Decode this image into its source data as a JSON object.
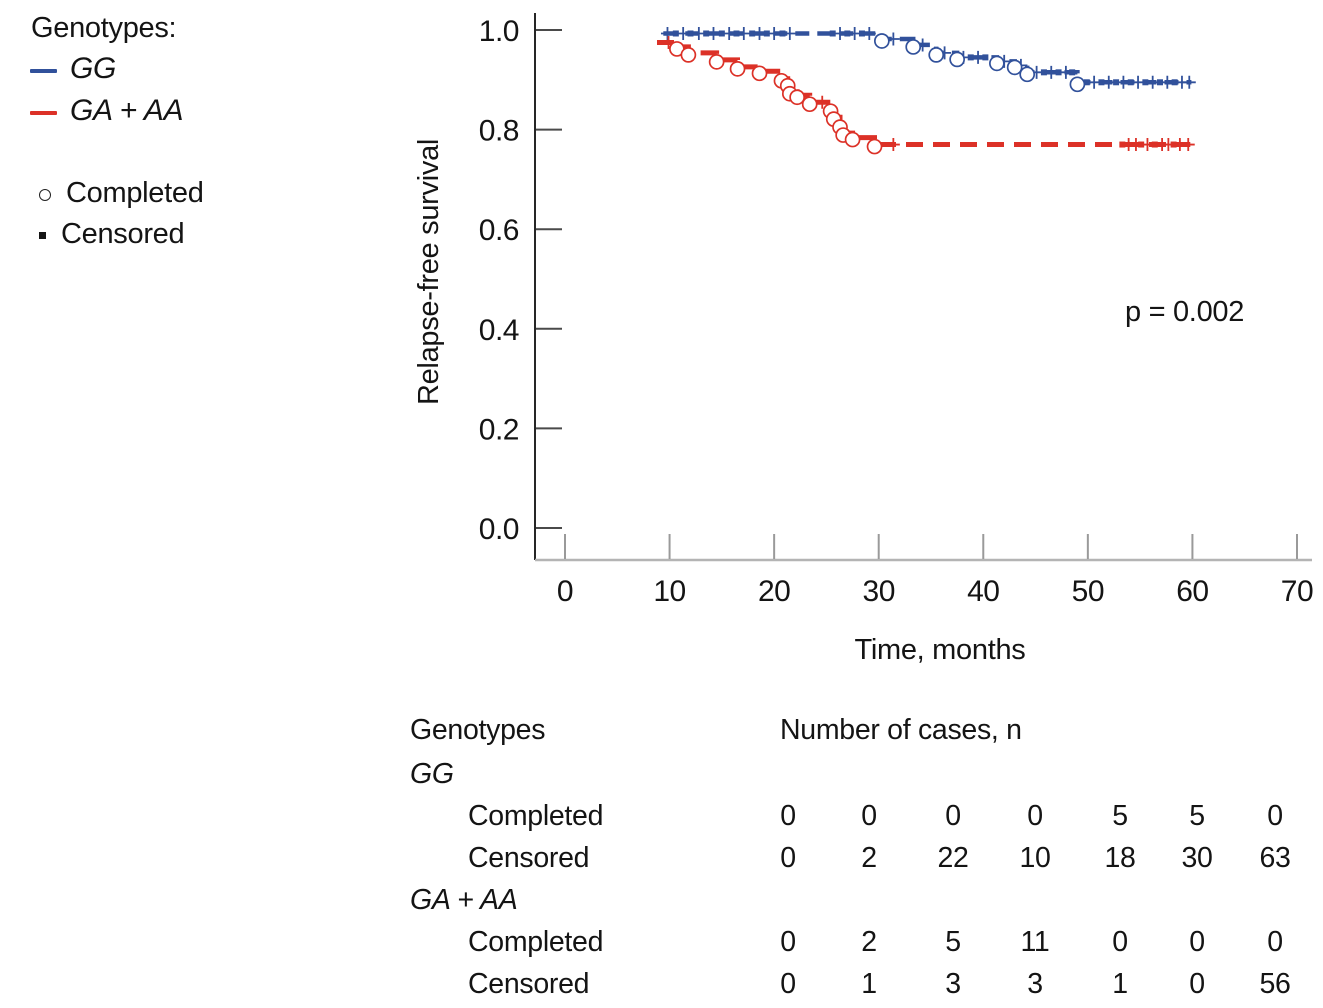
{
  "legend": {
    "title": "Genotypes:",
    "series": [
      {
        "label": "GG",
        "color": "#31519b"
      },
      {
        "label": "GA + AA",
        "color": "#dc3127"
      }
    ],
    "markers": [
      {
        "label": "Completed",
        "symbol": "open-circle"
      },
      {
        "label": "Censored",
        "symbol": "filled-square"
      }
    ]
  },
  "chart_data": {
    "type": "line",
    "subtype": "kaplan-meier-step-curves",
    "title": "",
    "xlabel": "Time, months",
    "ylabel": "Relapse-free survival",
    "p_label": "p = 0.002",
    "xlim": [
      0,
      70
    ],
    "ylim": [
      0.0,
      1.0
    ],
    "x_ticks": [
      0,
      10,
      20,
      30,
      40,
      50,
      60,
      70
    ],
    "y_ticks": [
      {
        "label": "1.0",
        "value": 1.0
      },
      {
        "label": "0.8",
        "value": 0.8
      },
      {
        "label": "0.6",
        "value": 0.6
      },
      {
        "label": "0.4",
        "value": 0.4
      },
      {
        "label": "0.2",
        "value": 0.2
      },
      {
        "label": "0.0",
        "value": 0.0
      }
    ],
    "grid": false,
    "legend_position": "outside-top-left",
    "series": [
      {
        "name": "GG",
        "color": "#31519b",
        "line_style": "thick-dashed",
        "start_month": 9.4,
        "end_month": 59.9,
        "steps": [
          [
            9.4,
            0.993
          ],
          [
            30.3,
            0.982
          ],
          [
            33.3,
            0.97
          ],
          [
            35.5,
            0.954
          ],
          [
            37.5,
            0.945
          ],
          [
            41.3,
            0.937
          ],
          [
            43.0,
            0.929
          ],
          [
            44.2,
            0.915
          ],
          [
            49.0,
            0.895
          ]
        ],
        "censors": [
          [
            9.8,
            "p"
          ],
          [
            10.6,
            "s"
          ],
          [
            11.3,
            "p"
          ],
          [
            12.0,
            "s"
          ],
          [
            12.8,
            "p"
          ],
          [
            13.5,
            "s"
          ],
          [
            14.2,
            "p"
          ],
          [
            15.0,
            "s"
          ],
          [
            15.7,
            "p"
          ],
          [
            16.4,
            "s"
          ],
          [
            17.1,
            "p"
          ],
          [
            17.9,
            "s"
          ],
          [
            18.6,
            "p"
          ],
          [
            19.3,
            "s"
          ],
          [
            20.0,
            "p"
          ],
          [
            20.8,
            "s"
          ],
          [
            21.5,
            "p"
          ],
          [
            25.6,
            "s"
          ],
          [
            26.3,
            "p"
          ],
          [
            27.0,
            "s"
          ],
          [
            27.7,
            "p"
          ],
          [
            28.4,
            "s"
          ],
          [
            29.1,
            "p"
          ],
          [
            31.4,
            "p"
          ],
          [
            34.2,
            "p"
          ],
          [
            36.3,
            "p"
          ],
          [
            38.1,
            "p"
          ],
          [
            38.8,
            "s"
          ],
          [
            39.5,
            "p"
          ],
          [
            40.2,
            "s"
          ],
          [
            42.0,
            "p"
          ],
          [
            43.6,
            "p"
          ],
          [
            45.1,
            "p"
          ],
          [
            45.8,
            "s"
          ],
          [
            46.5,
            "p"
          ],
          [
            47.2,
            "s"
          ],
          [
            47.9,
            "p"
          ],
          [
            48.5,
            "s"
          ],
          [
            49.9,
            "s"
          ],
          [
            50.6,
            "p"
          ],
          [
            51.3,
            "s"
          ],
          [
            52.0,
            "p"
          ],
          [
            52.7,
            "s"
          ],
          [
            53.4,
            "p"
          ],
          [
            54.1,
            "s"
          ],
          [
            54.8,
            "p"
          ],
          [
            55.5,
            "s"
          ],
          [
            56.2,
            "p"
          ],
          [
            56.9,
            "s"
          ],
          [
            57.6,
            "p"
          ],
          [
            58.3,
            "s"
          ],
          [
            59.0,
            "p"
          ],
          [
            59.7,
            "p"
          ]
        ]
      },
      {
        "name": "GA + AA",
        "color": "#dc3127",
        "line_style": "thick-dashed",
        "start_month": 8.8,
        "end_month": 59.8,
        "steps": [
          [
            8.8,
            0.975
          ],
          [
            10.7,
            0.966
          ],
          [
            11.8,
            0.954
          ],
          [
            14.5,
            0.94
          ],
          [
            16.5,
            0.926
          ],
          [
            18.6,
            0.917
          ],
          [
            20.7,
            0.902
          ],
          [
            21.3,
            0.892
          ],
          [
            21.5,
            0.876
          ],
          [
            22.2,
            0.869
          ],
          [
            23.4,
            0.855
          ],
          [
            25.4,
            0.841
          ],
          [
            25.7,
            0.825
          ],
          [
            26.3,
            0.809
          ],
          [
            26.6,
            0.793
          ],
          [
            27.5,
            0.784
          ],
          [
            29.6,
            0.77
          ]
        ],
        "censors": [
          [
            9.9,
            "p"
          ],
          [
            24.6,
            "p"
          ],
          [
            31.4,
            "p"
          ],
          [
            53.3,
            "s"
          ],
          [
            53.9,
            "p"
          ],
          [
            54.6,
            "p"
          ],
          [
            55.1,
            "s"
          ],
          [
            55.7,
            "p"
          ],
          [
            56.4,
            "s"
          ],
          [
            57.1,
            "p"
          ],
          [
            57.7,
            "p"
          ],
          [
            58.2,
            "s"
          ],
          [
            58.8,
            "p"
          ],
          [
            59.6,
            "p"
          ]
        ]
      }
    ]
  },
  "table": {
    "col_header_left": "Genotypes",
    "col_header_right": "Number of cases, n",
    "rows": [
      {
        "type": "group",
        "label": "GG"
      },
      {
        "type": "data",
        "label": "Completed",
        "values": [
          "0",
          "0",
          "0",
          "0",
          "5",
          "5",
          "0"
        ]
      },
      {
        "type": "data",
        "label": "Censored",
        "values": [
          "0",
          "2",
          "22",
          "10",
          "18",
          "30",
          "63"
        ]
      },
      {
        "type": "group",
        "label": "GA + AA"
      },
      {
        "type": "data",
        "label": "Completed",
        "values": [
          "0",
          "2",
          "5",
          "11",
          "0",
          "0",
          "0"
        ]
      },
      {
        "type": "data",
        "label": "Censored",
        "values": [
          "0",
          "1",
          "3",
          "3",
          "1",
          "0",
          "56"
        ]
      }
    ]
  }
}
